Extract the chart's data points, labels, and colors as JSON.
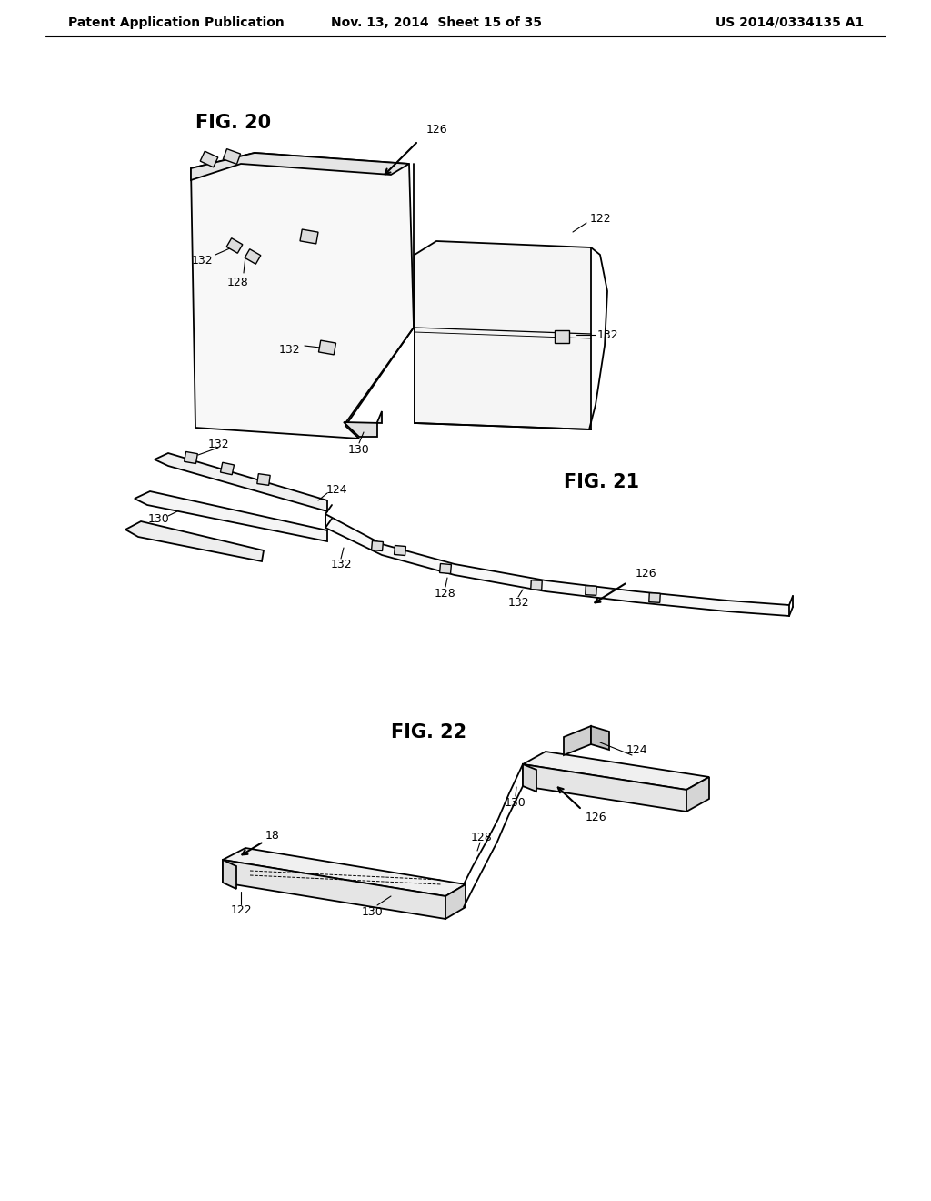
{
  "background_color": "#ffffff",
  "line_color": "#000000",
  "header_left": "Patent Application Publication",
  "header_center": "Nov. 13, 2014  Sheet 15 of 35",
  "header_right": "US 2014/0334135 A1",
  "fig20_label": "FIG. 20",
  "fig21_label": "FIG. 21",
  "fig22_label": "FIG. 22",
  "label_fontsize": 15,
  "header_fontsize": 10,
  "ref_fontsize": 9
}
